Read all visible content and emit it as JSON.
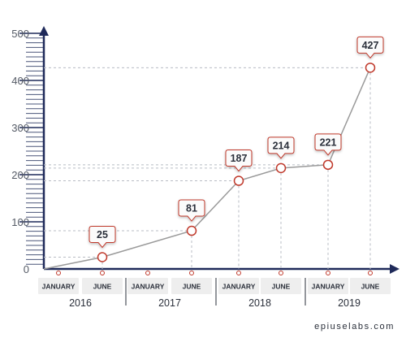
{
  "colors": {
    "axis": "#1f2a5a",
    "line": "#9a9a9a",
    "marker": "#c0392b",
    "grid": "#b8bcc4",
    "label_bg": "#eeeeee"
  },
  "footer": "epiuselabs.com",
  "chart_data": {
    "type": "line",
    "x_months": [
      "JANUARY",
      "JUNE",
      "JANUARY",
      "JUNE",
      "JANUARY",
      "JUNE",
      "JANUARY",
      "JUNE"
    ],
    "x_years": [
      "2016",
      "2017",
      "2018",
      "2019"
    ],
    "points": [
      {
        "month_index": 1,
        "year": "2016",
        "value": 25
      },
      {
        "month_index": 3,
        "year": "2017",
        "value": 81
      },
      {
        "month_index": 4,
        "year": "2018",
        "value": 187
      },
      {
        "month_index": 5,
        "year": "2018",
        "value": 214
      },
      {
        "month_index": 6,
        "year": "2019",
        "value": 221
      },
      {
        "month_index": 7,
        "year": "2019",
        "value": 427
      }
    ],
    "y_ticks": [
      0,
      100,
      200,
      300,
      400,
      500
    ],
    "ylim": [
      0,
      500
    ],
    "grid": "dashed guides from points to axes",
    "legend": "none"
  }
}
